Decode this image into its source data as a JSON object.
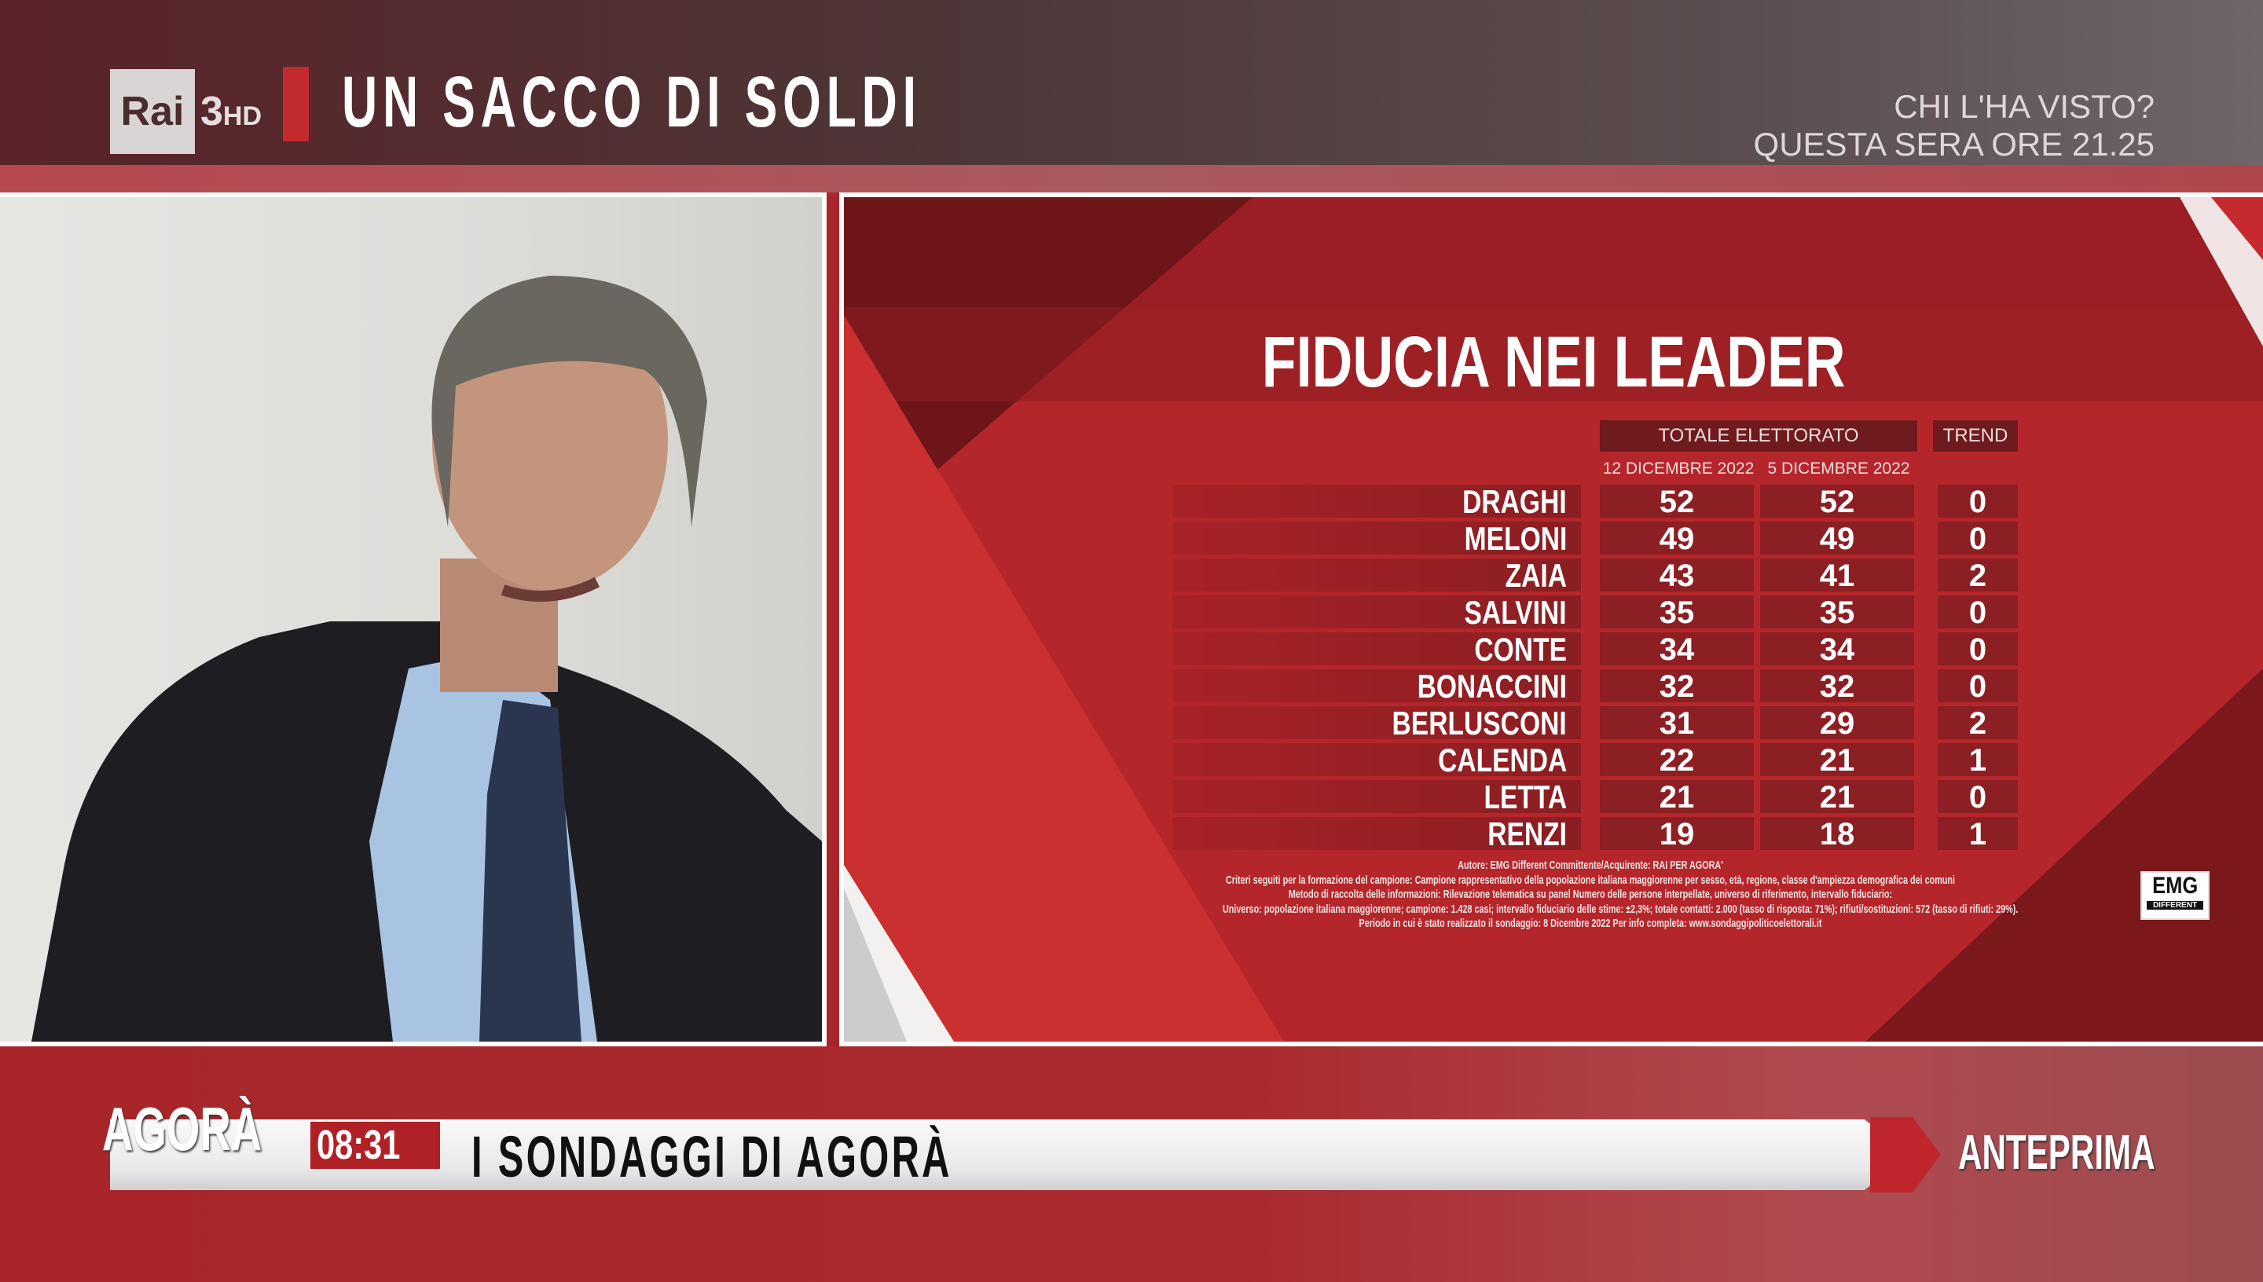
{
  "header": {
    "channel_logo": "Rai",
    "channel_number": "3",
    "channel_hd": "HD",
    "show_title": "UN SACCO DI SOLDI",
    "promo_line1": "CHI L'HA VISTO?",
    "promo_line2": "QUESTA SERA ORE 21.25"
  },
  "graphic": {
    "title": "FIDUCIA NEI LEADER",
    "group_header": "TOTALE ELETTORATO",
    "trend_header": "TREND",
    "col1_date": "12 DICEMBRE 2022",
    "col2_date": "5 DICEMBRE 2022",
    "rows": [
      {
        "name": "DRAGHI",
        "current": "52",
        "previous": "52",
        "trend": "0"
      },
      {
        "name": "MELONI",
        "current": "49",
        "previous": "49",
        "trend": "0"
      },
      {
        "name": "ZAIA",
        "current": "43",
        "previous": "41",
        "trend": "2"
      },
      {
        "name": "SALVINI",
        "current": "35",
        "previous": "35",
        "trend": "0"
      },
      {
        "name": "CONTE",
        "current": "34",
        "previous": "34",
        "trend": "0"
      },
      {
        "name": "BONACCINI",
        "current": "32",
        "previous": "32",
        "trend": "0"
      },
      {
        "name": "BERLUSCONI",
        "current": "31",
        "previous": "29",
        "trend": "2"
      },
      {
        "name": "CALENDA",
        "current": "22",
        "previous": "21",
        "trend": "1"
      },
      {
        "name": "LETTA",
        "current": "21",
        "previous": "21",
        "trend": "0"
      },
      {
        "name": "RENZI",
        "current": "19",
        "previous": "18",
        "trend": "1"
      }
    ],
    "notes": [
      "Autore: EMG Different Committente/Acquirente: RAI PER AGORA'",
      "Criteri seguiti per la formazione del campione: Campione rappresentativo della popolazione italiana maggiorenne per sesso, età, regione, classe d'ampiezza demografica dei comuni",
      "Metodo di raccolta delle informazioni: Rilevazione telematica su panel Numero delle persone interpellate, universo di riferimento, intervallo fiduciario:",
      "Universo: popolazione italiana maggiorenne; campione: 1.428 casi; intervallo fiduciario delle stime: ±2,3%; totale contatti: 2.000 (tasso di risposta: 71%); rifiuti/sostituzioni: 572 (tasso di rifiuti: 29%).",
      "Periodo in cui è stato realizzato il sondaggio: 8 Dicembre 2022  Per info completa: www.sondaggipoliticoelettorali.it"
    ],
    "emg_logo": "EMG",
    "emg_sub": "DIFFERENT"
  },
  "bottom": {
    "program_logo": "AGORÀ",
    "time": "08:31",
    "ticker": "I SONDAGGI DI AGORÀ",
    "label": "ANTEPRIMA"
  },
  "colors": {
    "brand_red": "#b5262b",
    "dark_red": "#8c1f23",
    "header_bg": "#4d3536"
  }
}
